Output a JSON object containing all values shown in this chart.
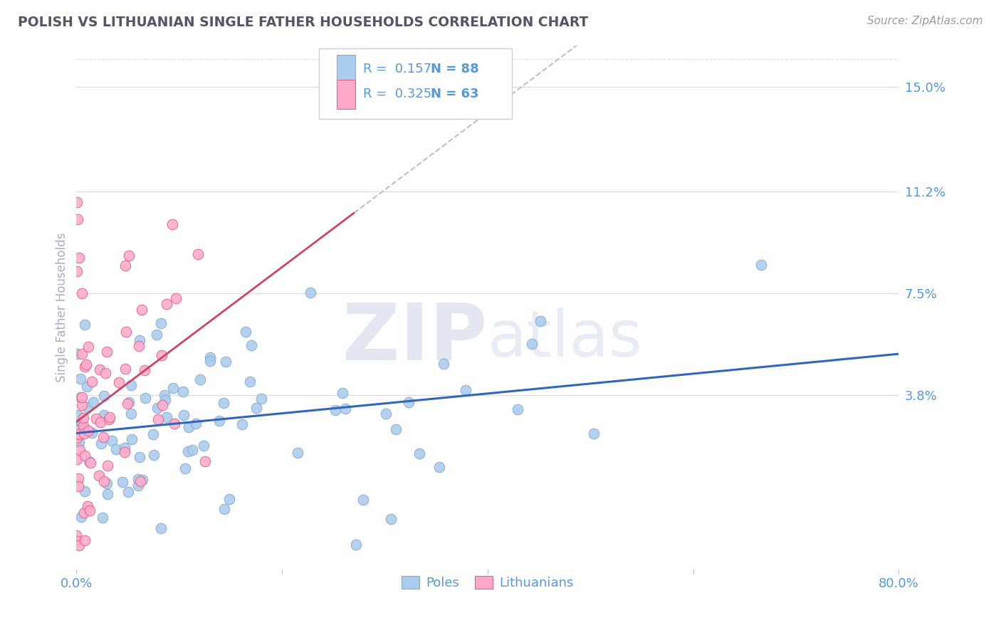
{
  "title": "POLISH VS LITHUANIAN SINGLE FATHER HOUSEHOLDS CORRELATION CHART",
  "source": "Source: ZipAtlas.com",
  "ylabel": "Single Father Households",
  "xlim": [
    0.0,
    0.8
  ],
  "ylim": [
    -0.025,
    0.165
  ],
  "xticks": [
    0.0,
    0.2,
    0.4,
    0.6,
    0.8
  ],
  "xtick_labels": [
    "0.0%",
    "",
    "",
    "",
    "80.0%"
  ],
  "ytick_positions": [
    0.038,
    0.075,
    0.112,
    0.15
  ],
  "ytick_labels": [
    "3.8%",
    "7.5%",
    "11.2%",
    "15.0%"
  ],
  "poles_color": "#aaccee",
  "poles_edge_color": "#88aacc",
  "lithuanians_color": "#ffaacc",
  "lithuanians_edge_color": "#dd6688",
  "poles_line_color": "#3366bb",
  "lithuanians_line_color": "#cc4466",
  "trendline_dash_color": "#ccbbbb",
  "poles_R": 0.157,
  "poles_N": 88,
  "lithuanians_R": 0.325,
  "lithuanians_N": 63,
  "watermark_zip": "ZIP",
  "watermark_atlas": "atlas",
  "watermark_color": "#ccd8ee",
  "grid_color": "#ddddee",
  "background_color": "#ffffff",
  "title_color": "#555566",
  "axis_label_color": "#aaaacc",
  "tick_label_color": "#5599dd",
  "source_color": "#999aaa"
}
